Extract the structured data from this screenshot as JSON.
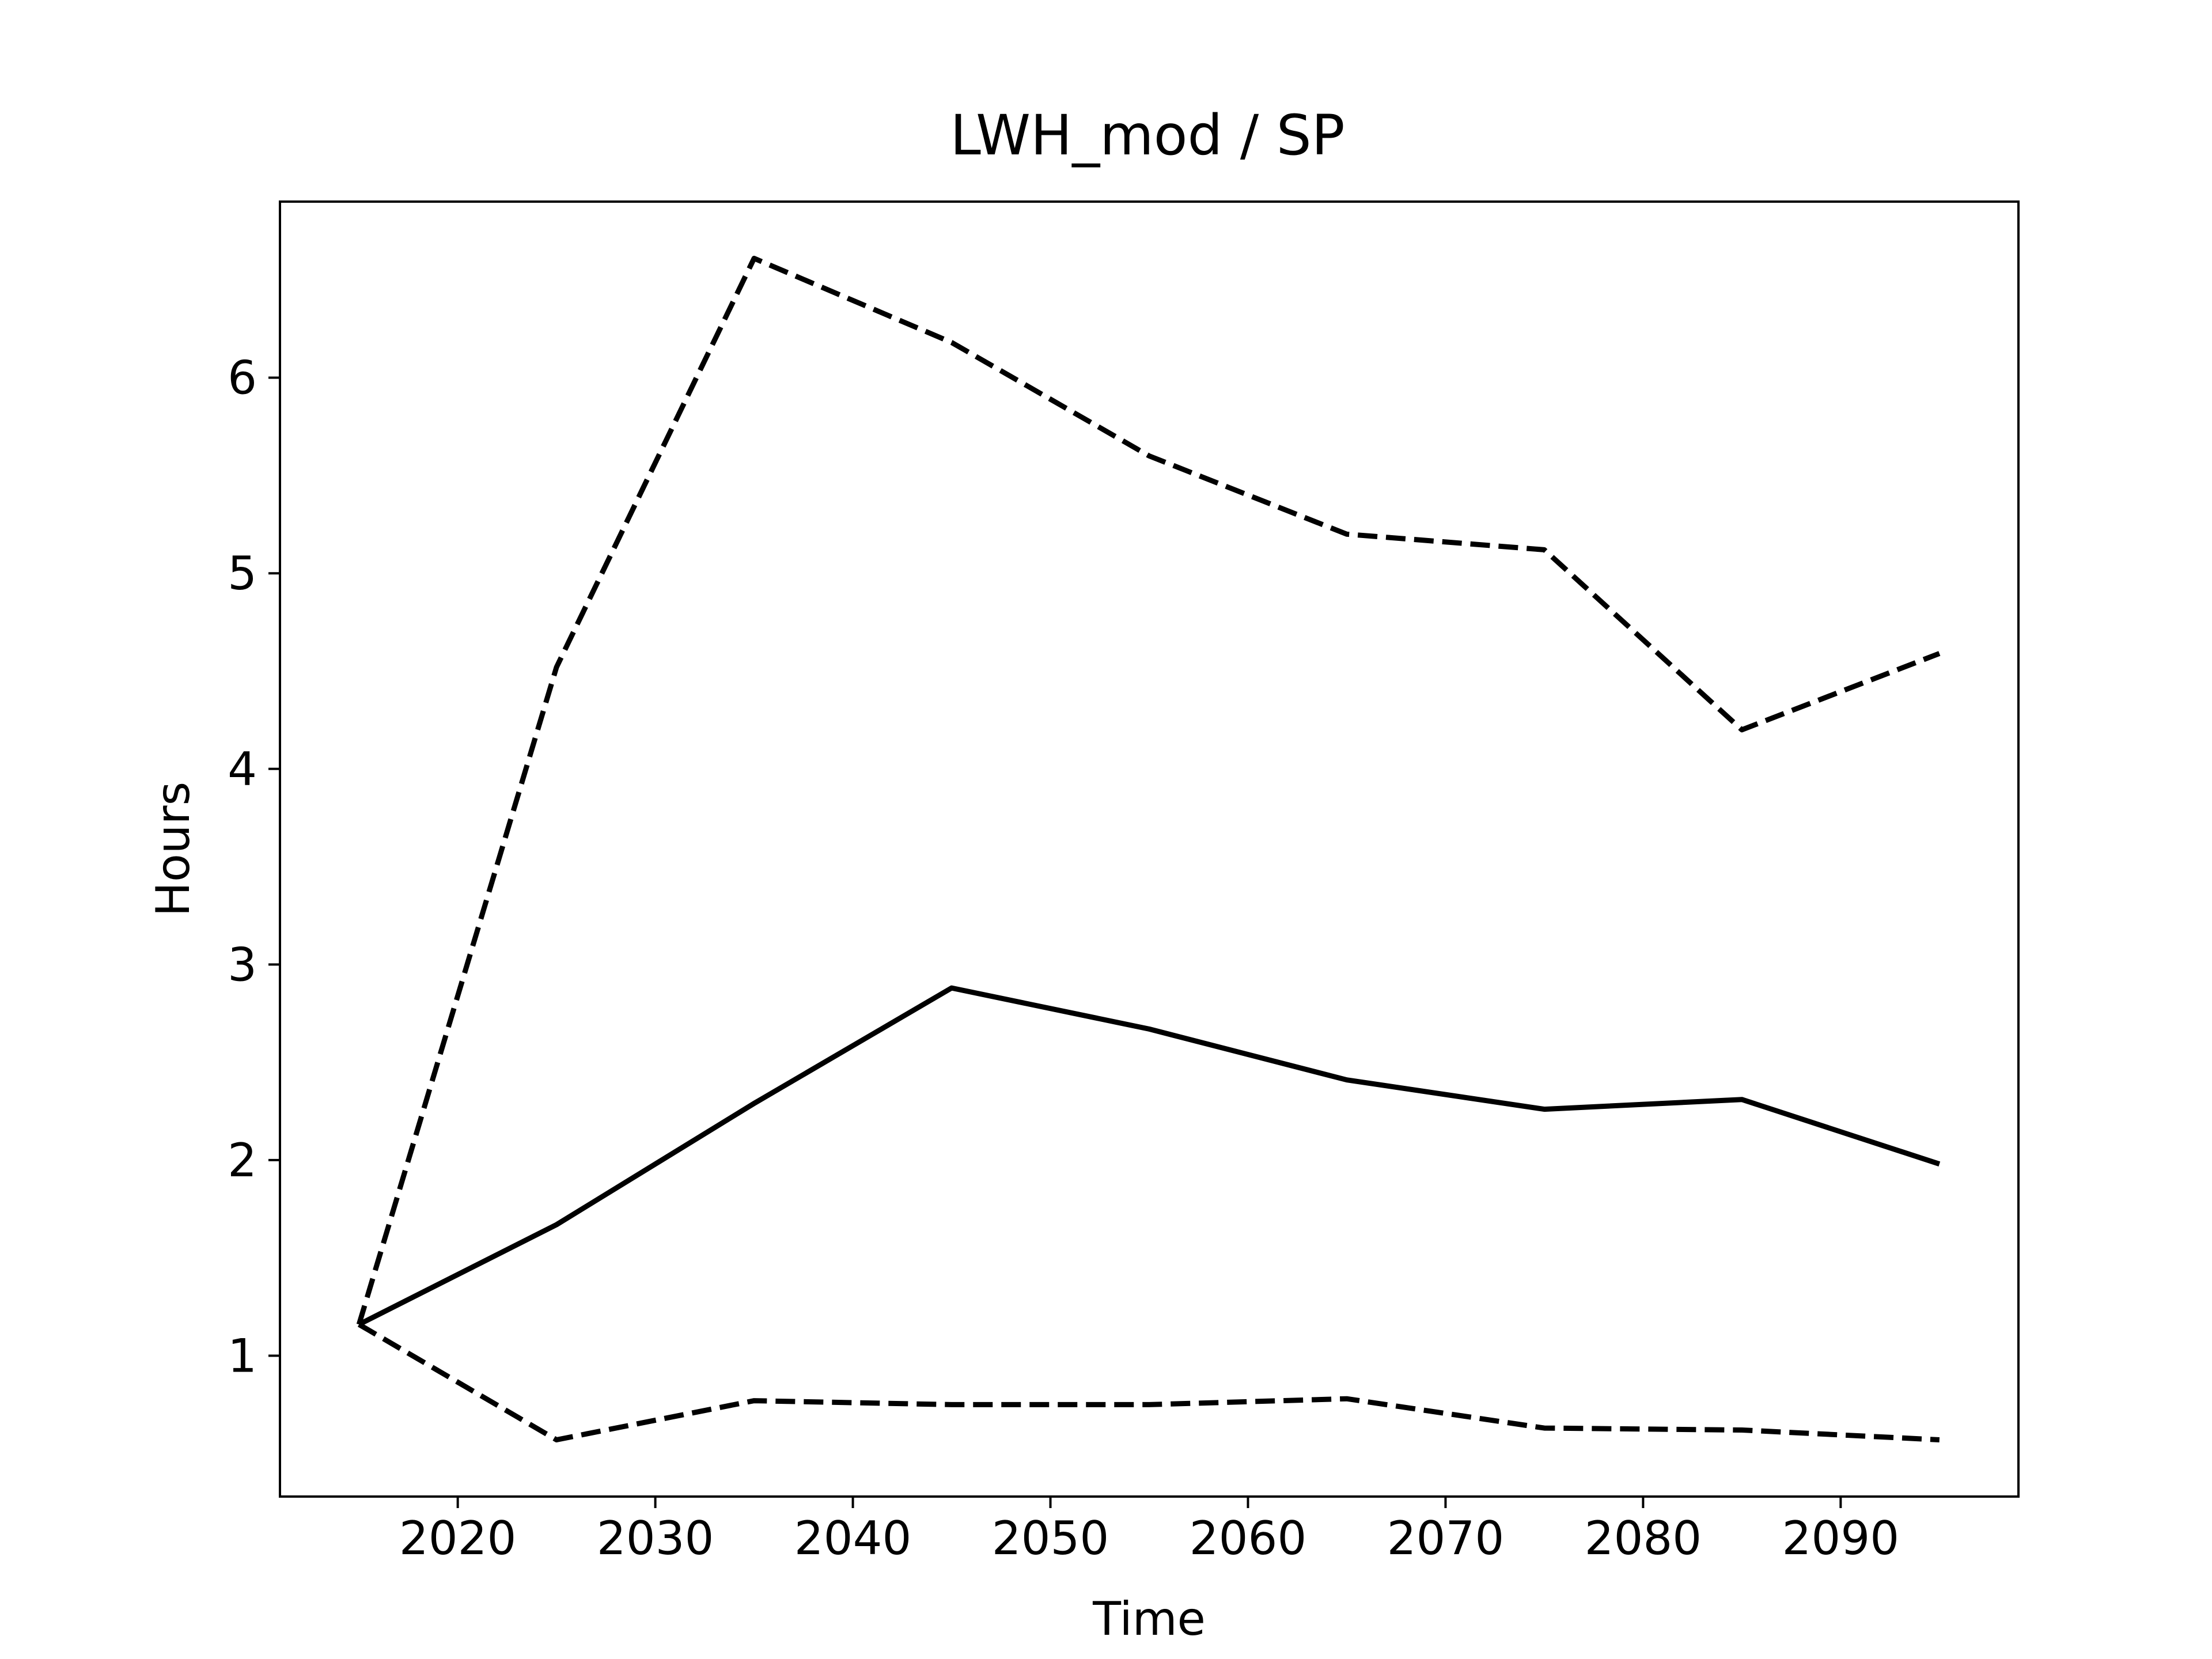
{
  "chart_data": {
    "type": "line",
    "title": "LWH_mod / SP",
    "xlabel": "Time",
    "ylabel": "Hours",
    "xlim": [
      2011,
      2099
    ],
    "ylim": [
      0.28,
      6.9
    ],
    "xticks": [
      2020,
      2030,
      2040,
      2050,
      2060,
      2070,
      2080,
      2090
    ],
    "yticks": [
      1,
      2,
      3,
      4,
      5,
      6
    ],
    "grid": false,
    "legend": "none",
    "x": [
      2015,
      2025,
      2035,
      2045,
      2055,
      2065,
      2075,
      2085,
      2095
    ],
    "series": [
      {
        "style": "solid",
        "color": "#000000",
        "values": [
          1.16,
          1.67,
          2.29,
          2.88,
          2.67,
          2.41,
          2.26,
          2.31,
          1.98
        ]
      },
      {
        "style": "dashed",
        "color": "#000000",
        "values": [
          1.16,
          4.52,
          6.61,
          6.18,
          5.6,
          5.2,
          5.12,
          4.2,
          4.59
        ]
      },
      {
        "style": "dashed",
        "color": "#000000",
        "values": [
          1.16,
          0.57,
          0.77,
          0.75,
          0.75,
          0.78,
          0.63,
          0.62,
          0.57
        ]
      }
    ]
  }
}
